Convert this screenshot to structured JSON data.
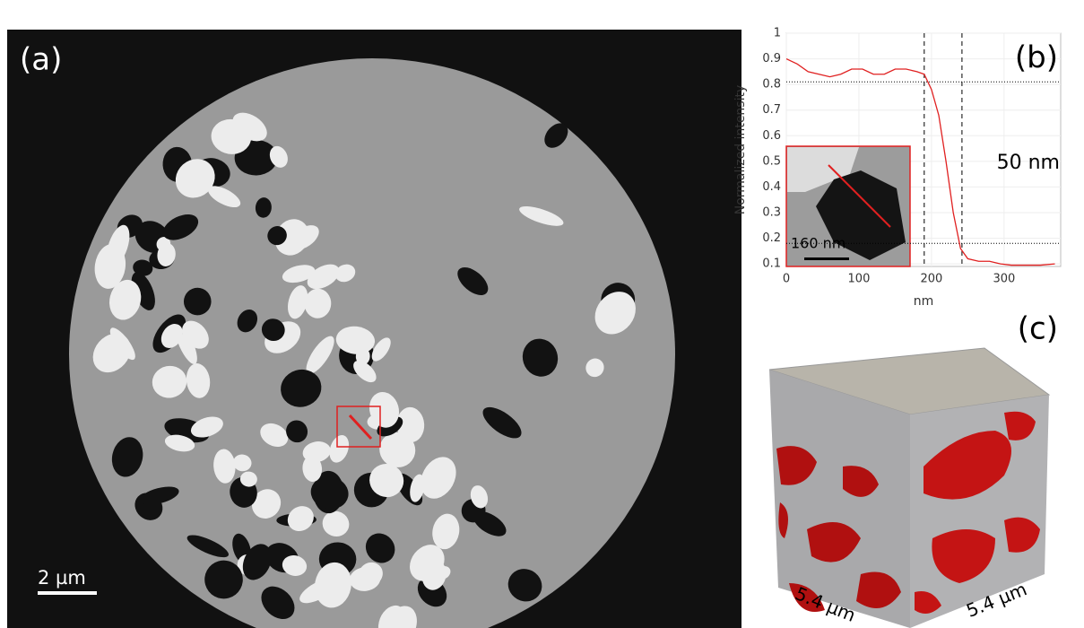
{
  "panels": {
    "a": {
      "label": "(a)",
      "scale_bar": "2 µm"
    },
    "c": {
      "label": "(c)",
      "dim_left": "5.4 µm",
      "dim_right": "5.4 µm"
    }
  },
  "chart_data": {
    "type": "line",
    "panel_label": "(b)",
    "annotation": "50 nm",
    "inset_scale": "160 nm",
    "x_label": "nm",
    "y_label": "Normalized intensity",
    "x": [
      0,
      15,
      30,
      45,
      60,
      75,
      90,
      105,
      120,
      135,
      150,
      165,
      180,
      190,
      200,
      210,
      220,
      230,
      240,
      250,
      265,
      280,
      295,
      310,
      330,
      350,
      370
    ],
    "values": [
      0.9,
      0.88,
      0.85,
      0.84,
      0.83,
      0.84,
      0.86,
      0.86,
      0.84,
      0.84,
      0.86,
      0.86,
      0.85,
      0.84,
      0.78,
      0.68,
      0.5,
      0.3,
      0.16,
      0.12,
      0.11,
      0.11,
      0.1,
      0.095,
      0.095,
      0.095,
      0.1
    ],
    "color": "#e02020",
    "xlim": [
      0,
      378
    ],
    "ylim": [
      0.09,
      1
    ],
    "xticks": [
      0,
      100,
      200,
      300
    ],
    "yticks": [
      0.1,
      0.2,
      0.3,
      0.4,
      0.5,
      0.6,
      0.7,
      0.8,
      0.9,
      1
    ],
    "vlines": [
      190,
      242
    ],
    "hlines": [
      0.81,
      0.18
    ],
    "grid": true
  }
}
